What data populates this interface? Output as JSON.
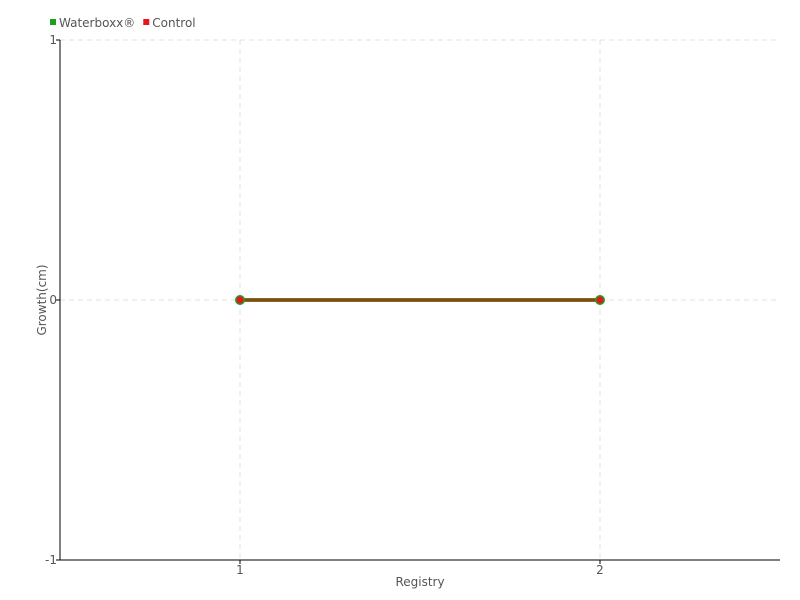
{
  "chart_data": {
    "type": "line",
    "title": "",
    "xlabel": "Registry",
    "ylabel": "Growth(cm)",
    "x": [
      1,
      2
    ],
    "xlim": [
      0.5,
      2.5
    ],
    "ylim": [
      -1,
      1
    ],
    "xticks": [
      "1",
      "2"
    ],
    "yticks": [
      "1",
      "0",
      "-1"
    ],
    "grid": true,
    "legend_position": "top-left",
    "series": [
      {
        "name": "Waterboxx®",
        "values": [
          0,
          0
        ],
        "color": "#1ea01e"
      },
      {
        "name": "Control",
        "values": [
          0,
          0
        ],
        "color": "#e8141e"
      }
    ]
  }
}
